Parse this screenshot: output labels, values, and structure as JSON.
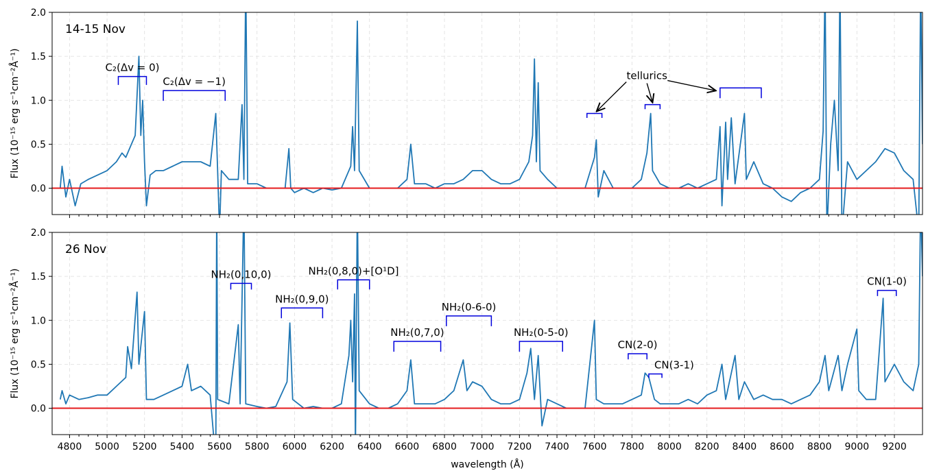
{
  "chart_data": [
    {
      "type": "line",
      "panel_label": "14-15 Nov",
      "ylabel": "Flux (10⁻¹⁵ erg s⁻¹cm⁻²Å⁻¹)",
      "color": "#1f77b4",
      "xlim": [
        4707,
        9350
      ],
      "ylim": [
        -0.3,
        2.0
      ],
      "yticks": [
        {
          "value": -0.0,
          "label": "0.0"
        },
        {
          "value": 0.5,
          "label": "0.5"
        },
        {
          "value": 1,
          "label": "1.0"
        },
        {
          "value": 1.5,
          "label": "1.5"
        },
        {
          "value": 2,
          "label": "2.0"
        }
      ],
      "grid": true,
      "reference_line": {
        "value": 0,
        "color": "#e41a1c"
      },
      "x": [
        4750,
        4760,
        4780,
        4800,
        4830,
        4860,
        4900,
        4950,
        5000,
        5050,
        5080,
        5100,
        5130,
        5150,
        5170,
        5180,
        5190,
        5200,
        5210,
        5230,
        5260,
        5300,
        5350,
        5400,
        5450,
        5500,
        5550,
        5580,
        5590,
        5600,
        5610,
        5650,
        5700,
        5720,
        5730,
        5740,
        5750,
        5800,
        5850,
        5900,
        5950,
        5970,
        5980,
        6000,
        6050,
        6100,
        6150,
        6200,
        6250,
        6300,
        6310,
        6320,
        6335,
        6345,
        6400,
        6450,
        6500,
        6550,
        6600,
        6620,
        6640,
        6700,
        6750,
        6800,
        6850,
        6900,
        6950,
        7000,
        7050,
        7100,
        7150,
        7200,
        7250,
        7270,
        7280,
        7290,
        7300,
        7310,
        7350,
        7400,
        7450,
        7500,
        7550,
        7600,
        7610,
        7620,
        7650,
        7700,
        7750,
        7800,
        7850,
        7880,
        7900,
        7910,
        7950,
        8000,
        8050,
        8100,
        8150,
        8200,
        8250,
        8270,
        8280,
        8300,
        8310,
        8330,
        8350,
        8400,
        8410,
        8450,
        8500,
        8550,
        8600,
        8650,
        8700,
        8750,
        8800,
        8820,
        8830,
        8840,
        8860,
        8880,
        8900,
        8910,
        8920,
        8950,
        9000,
        9050,
        9100,
        9150,
        9200,
        9250,
        9300,
        9330,
        9340,
        9350
      ],
      "values": [
        0.0,
        0.25,
        -0.1,
        0.1,
        -0.2,
        0.05,
        0.1,
        0.15,
        0.2,
        0.3,
        0.4,
        0.35,
        0.5,
        0.6,
        1.5,
        0.6,
        1.0,
        0.3,
        -0.2,
        0.15,
        0.2,
        0.2,
        0.25,
        0.3,
        0.3,
        0.3,
        0.25,
        0.85,
        0.2,
        -0.5,
        0.2,
        0.1,
        0.1,
        0.95,
        0.1,
        2.4,
        0.05,
        0.05,
        0.0,
        0.0,
        0.0,
        0.45,
        0.0,
        -0.05,
        0.0,
        -0.05,
        0.0,
        -0.02,
        0.0,
        0.25,
        0.7,
        0.2,
        1.9,
        0.2,
        0.0,
        0.0,
        0.0,
        0.0,
        0.1,
        0.5,
        0.05,
        0.05,
        0.0,
        0.05,
        0.05,
        0.1,
        0.2,
        0.2,
        0.1,
        0.05,
        0.05,
        0.1,
        0.3,
        0.6,
        1.47,
        0.3,
        1.2,
        0.2,
        0.1,
        0.0,
        0.0,
        0.0,
        0.0,
        0.35,
        0.55,
        -0.1,
        0.2,
        0.0,
        0.0,
        0.0,
        0.1,
        0.4,
        0.85,
        0.2,
        0.05,
        0.0,
        0.0,
        0.05,
        0.0,
        0.05,
        0.1,
        0.7,
        -0.2,
        0.75,
        0.1,
        0.8,
        0.05,
        0.85,
        0.1,
        0.3,
        0.05,
        0.0,
        -0.1,
        -0.15,
        -0.05,
        0.0,
        0.1,
        0.65,
        2.4,
        -0.5,
        0.5,
        1.0,
        0.2,
        2.4,
        -0.5,
        0.3,
        0.1,
        0.2,
        0.3,
        0.45,
        0.4,
        0.2,
        0.1,
        -0.5,
        2.4,
        0.5
      ],
      "annotations": [
        {
          "text": "C₂(Δv = 0)",
          "x": [
            5060,
            5210
          ],
          "y": 1.27
        },
        {
          "text": "C₂(Δv = −1)",
          "x": [
            5300,
            5630
          ],
          "y": 1.11
        },
        {
          "text": "tellurics",
          "label_x": 7880,
          "label_y": 1.24,
          "brackets": [
            {
              "x": [
                7560,
                7640
              ],
              "y": 0.85
            },
            {
              "x": [
                7870,
                7950
              ],
              "y": 0.95
            },
            {
              "x": [
                8270,
                8490
              ],
              "y": 1.14
            }
          ]
        }
      ]
    },
    {
      "type": "line",
      "panel_label": "26 Nov",
      "ylabel": "Flux (10⁻¹⁵ erg s⁻¹cm⁻²Å⁻¹)",
      "xlabel": "wavelength (Å)",
      "color": "#1f77b4",
      "xlim": [
        4707,
        9350
      ],
      "ylim": [
        -0.3,
        2.0
      ],
      "xticks": [
        4800,
        5000,
        5200,
        5400,
        5600,
        5800,
        6000,
        6200,
        6400,
        6600,
        6800,
        7000,
        7200,
        7400,
        7600,
        7800,
        8000,
        8200,
        8400,
        8600,
        8800,
        9000,
        9200
      ],
      "yticks": [
        {
          "value": -0.0,
          "label": "0.0"
        },
        {
          "value": 0.5,
          "label": "0.5"
        },
        {
          "value": 1,
          "label": "1.0"
        },
        {
          "value": 1.5,
          "label": "1.5"
        },
        {
          "value": 2,
          "label": "2.0"
        }
      ],
      "grid": true,
      "reference_line": {
        "value": 0,
        "color": "#e41a1c"
      },
      "x": [
        4750,
        4760,
        4780,
        4800,
        4850,
        4900,
        4950,
        5000,
        5050,
        5100,
        5110,
        5130,
        5160,
        5170,
        5200,
        5210,
        5250,
        5300,
        5350,
        5400,
        5430,
        5450,
        5500,
        5550,
        5580,
        5585,
        5590,
        5650,
        5700,
        5710,
        5730,
        5740,
        5800,
        5850,
        5900,
        5960,
        5975,
        5990,
        6050,
        6100,
        6150,
        6200,
        6250,
        6290,
        6300,
        6310,
        6320,
        6325,
        6335,
        6345,
        6400,
        6450,
        6500,
        6550,
        6600,
        6620,
        6640,
        6700,
        6750,
        6800,
        6850,
        6900,
        6920,
        6950,
        7000,
        7050,
        7100,
        7150,
        7200,
        7240,
        7260,
        7280,
        7300,
        7320,
        7350,
        7400,
        7450,
        7500,
        7550,
        7600,
        7610,
        7650,
        7700,
        7750,
        7800,
        7850,
        7870,
        7890,
        7920,
        7950,
        8000,
        8050,
        8100,
        8150,
        8200,
        8250,
        8280,
        8300,
        8350,
        8370,
        8400,
        8450,
        8500,
        8550,
        8600,
        8650,
        8700,
        8750,
        8800,
        8830,
        8850,
        8900,
        8920,
        8950,
        9000,
        9010,
        9050,
        9100,
        9140,
        9150,
        9200,
        9250,
        9300,
        9330,
        9340,
        9350
      ],
      "values": [
        0.1,
        0.2,
        0.05,
        0.15,
        0.1,
        0.12,
        0.15,
        0.15,
        0.25,
        0.35,
        0.7,
        0.45,
        1.32,
        0.5,
        1.1,
        0.1,
        0.1,
        0.15,
        0.2,
        0.25,
        0.5,
        0.2,
        0.25,
        0.15,
        -0.6,
        2.4,
        0.1,
        0.05,
        0.95,
        0.05,
        2.4,
        0.05,
        0.02,
        0.0,
        0.02,
        0.3,
        0.97,
        0.1,
        0.0,
        0.02,
        0.0,
        0.0,
        0.05,
        0.6,
        1.0,
        0.3,
        1.3,
        -0.5,
        2.4,
        0.2,
        0.05,
        0.0,
        0.0,
        0.05,
        0.2,
        0.55,
        0.05,
        0.05,
        0.05,
        0.1,
        0.2,
        0.55,
        0.2,
        0.3,
        0.25,
        0.1,
        0.05,
        0.05,
        0.1,
        0.4,
        0.68,
        0.1,
        0.6,
        -0.2,
        0.1,
        0.05,
        0.0,
        0.0,
        0.0,
        1.0,
        0.1,
        0.05,
        0.05,
        0.05,
        0.1,
        0.15,
        0.4,
        0.35,
        0.1,
        0.05,
        0.05,
        0.05,
        0.1,
        0.05,
        0.15,
        0.2,
        0.5,
        0.1,
        0.6,
        0.1,
        0.3,
        0.1,
        0.15,
        0.1,
        0.1,
        0.05,
        0.1,
        0.15,
        0.3,
        0.6,
        0.2,
        0.6,
        0.2,
        0.5,
        0.9,
        0.2,
        0.1,
        0.1,
        1.25,
        0.3,
        0.5,
        0.3,
        0.2,
        0.5,
        2.4,
        1.5
      ],
      "annotations": [
        {
          "text": "NH₂(0,10,0)",
          "x": [
            5660,
            5770
          ],
          "y": 1.42
        },
        {
          "text": "NH₂(0,9,0)",
          "x": [
            5930,
            6150
          ],
          "y": 1.14
        },
        {
          "text": "NH₂(0,8,0)+[O¹D]",
          "x": [
            6230,
            6400
          ],
          "y": 1.46
        },
        {
          "text": "NH₂(0,7,0)",
          "x": [
            6530,
            6780
          ],
          "y": 0.76
        },
        {
          "text": "NH₂(0-6-0)",
          "x": [
            6810,
            7050
          ],
          "y": 1.05
        },
        {
          "text": "NH₂(0-5-0)",
          "x": [
            7200,
            7430
          ],
          "y": 0.76
        },
        {
          "text": "CN(2-0)",
          "x": [
            7780,
            7880
          ],
          "y": 0.62
        },
        {
          "text": "CN(3-1)",
          "x": [
            7890,
            7960
          ],
          "y": 0.39,
          "align": "left"
        },
        {
          "text": "CN(1-0)",
          "x": [
            9110,
            9210
          ],
          "y": 1.34
        }
      ]
    }
  ]
}
